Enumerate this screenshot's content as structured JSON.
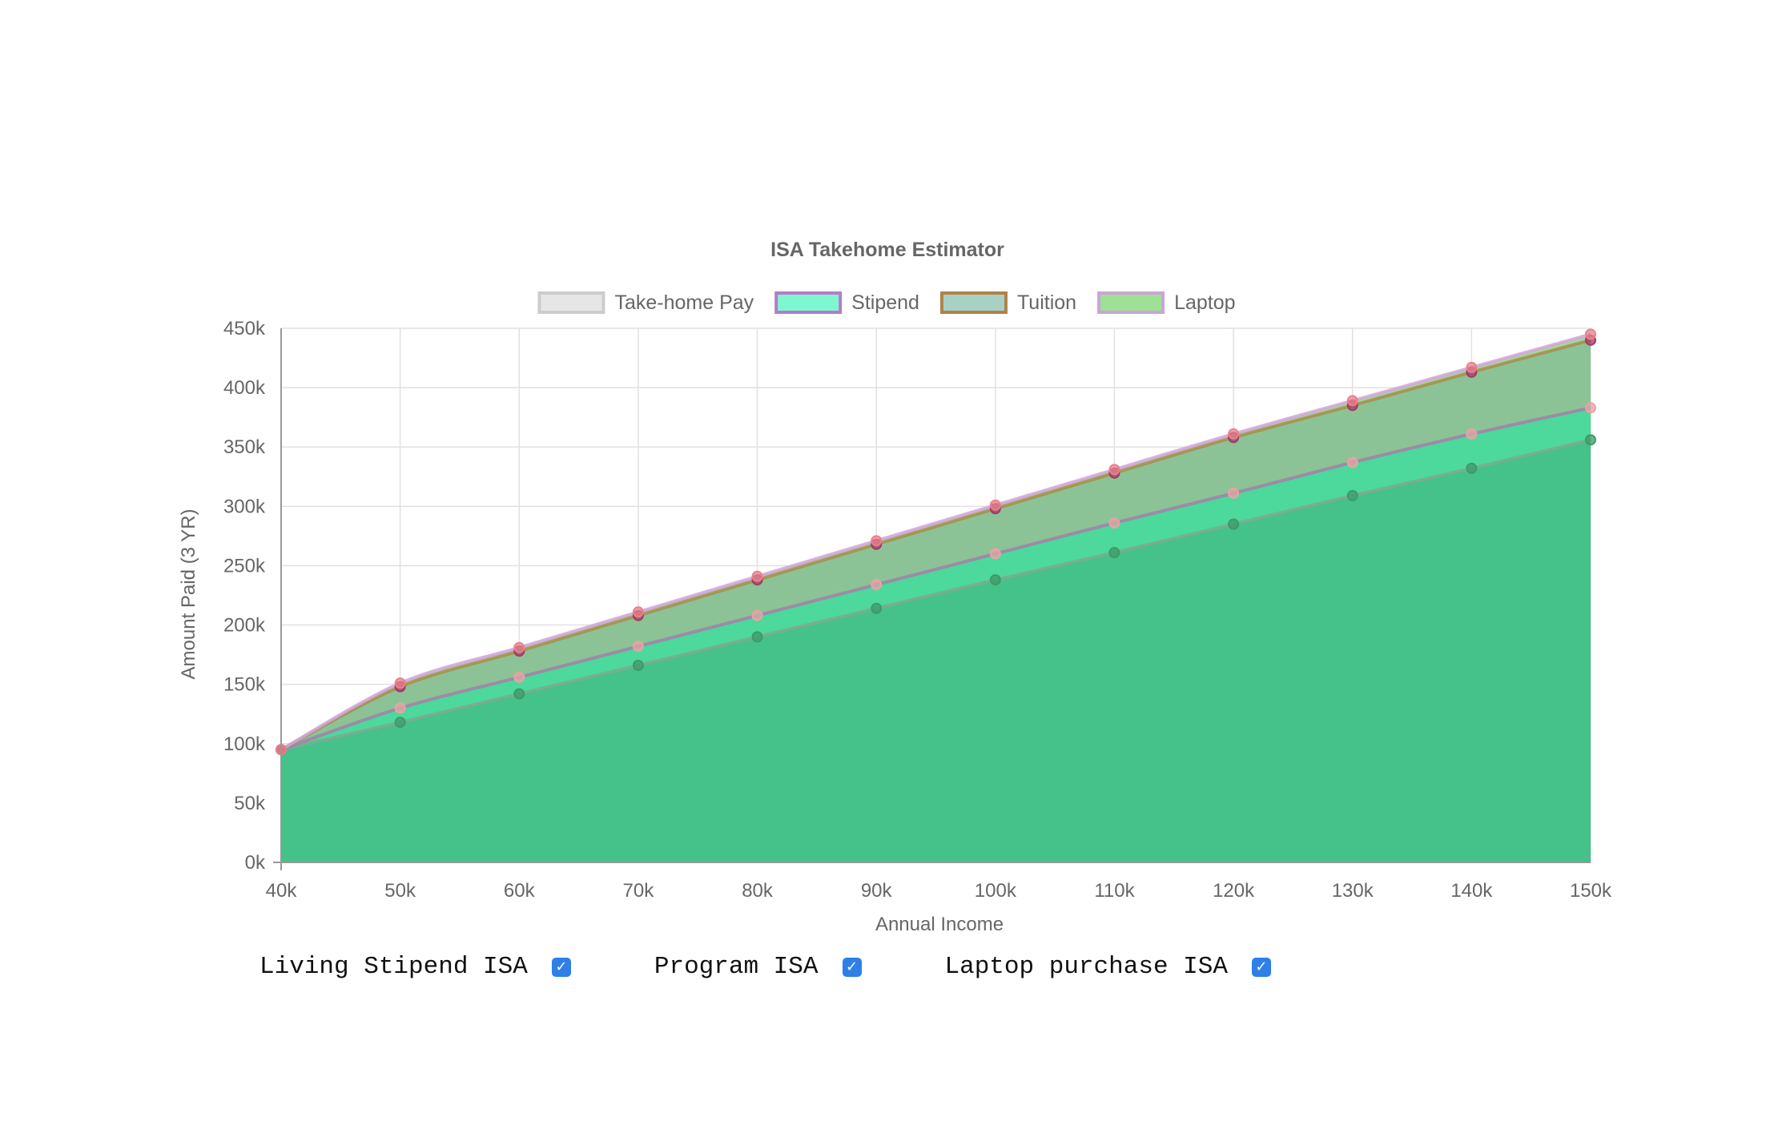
{
  "chart_data": {
    "type": "area",
    "title": "ISA Takehome Estimator",
    "xlabel": "Annual Income",
    "ylabel": "Amount Paid (3 YR)",
    "x": [
      "40k",
      "50k",
      "60k",
      "70k",
      "80k",
      "90k",
      "100k",
      "110k",
      "120k",
      "130k",
      "140k",
      "150k"
    ],
    "ylim": [
      0,
      450000
    ],
    "yticks": [
      0,
      50000,
      100000,
      150000,
      200000,
      250000,
      300000,
      350000,
      400000,
      450000
    ],
    "ytick_labels": [
      "0k",
      "50k",
      "100k",
      "150k",
      "200k",
      "250k",
      "300k",
      "350k",
      "400k",
      "450k"
    ],
    "grid": true,
    "legend_position": "top",
    "stacked": true,
    "series": [
      {
        "name": "Take-home Pay",
        "values": [
          95000,
          118000,
          142000,
          166000,
          190000,
          214000,
          238000,
          261000,
          285000,
          309000,
          332000,
          356000
        ],
        "fill": "#45c18a",
        "stroke": "#7bab8f",
        "point": "#3c9b68"
      },
      {
        "name": "Stipend",
        "values": [
          95000,
          130000,
          156000,
          182000,
          208000,
          234000,
          260000,
          286000,
          311000,
          337000,
          361000,
          383000
        ],
        "fill": "#4dd89c",
        "stroke": "#a580a8",
        "point": "#e9a2a6"
      },
      {
        "name": "Tuition",
        "values": [
          95000,
          148000,
          178000,
          208000,
          238000,
          268000,
          298000,
          328000,
          358000,
          385000,
          413000,
          440000
        ],
        "fill": "#8bc396",
        "stroke": "#a78e4b",
        "point": "#a23a66"
      },
      {
        "name": "Laptop",
        "values": [
          95000,
          151000,
          181000,
          211000,
          241000,
          271000,
          301000,
          331000,
          361000,
          389000,
          417000,
          445000
        ],
        "fill": "#a6d69c",
        "stroke": "#d3a3dd",
        "point": "#e8828c"
      }
    ],
    "legend": [
      {
        "name": "Take-home Pay",
        "fill": "#e6e6e6",
        "stroke": "#cccccc"
      },
      {
        "name": "Stipend",
        "fill": "#7ef7d0",
        "stroke": "#b47cc8"
      },
      {
        "name": "Tuition",
        "fill": "#a8d1c6",
        "stroke": "#b08248"
      },
      {
        "name": "Laptop",
        "fill": "#9ee095",
        "stroke": "#c9a6d6"
      }
    ]
  },
  "toggles": [
    {
      "label": "Living Stipend ISA",
      "checked": true,
      "mark": "✓"
    },
    {
      "label": "Program ISA",
      "checked": true,
      "mark": "✓"
    },
    {
      "label": "Laptop purchase ISA",
      "checked": true,
      "mark": "✓"
    }
  ]
}
